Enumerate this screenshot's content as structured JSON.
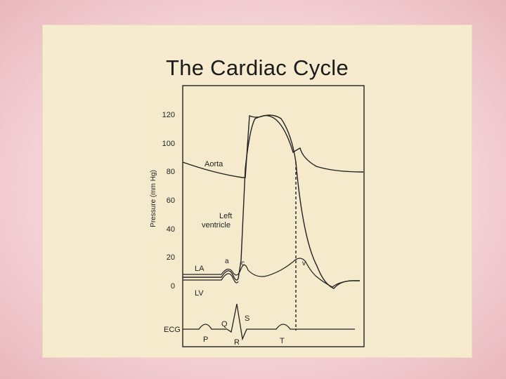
{
  "slide": {
    "title": "The Cardiac Cycle"
  },
  "diagram": {
    "y_axis_label": "Pressure (mm Hg)",
    "y_ticks": [
      "120",
      "100",
      "80",
      "60",
      "40",
      "20",
      "0"
    ],
    "curve_labels": {
      "aorta": "Aorta",
      "left_ventricle_1": "Left",
      "left_ventricle_2": "ventricle",
      "la": "LA",
      "lv": "LV",
      "ecg": "ECG"
    },
    "wave_labels": {
      "a": "a",
      "c": "c",
      "v": "v",
      "p": "P",
      "q": "Q",
      "r": "R",
      "s": "S",
      "t": "T"
    }
  }
}
